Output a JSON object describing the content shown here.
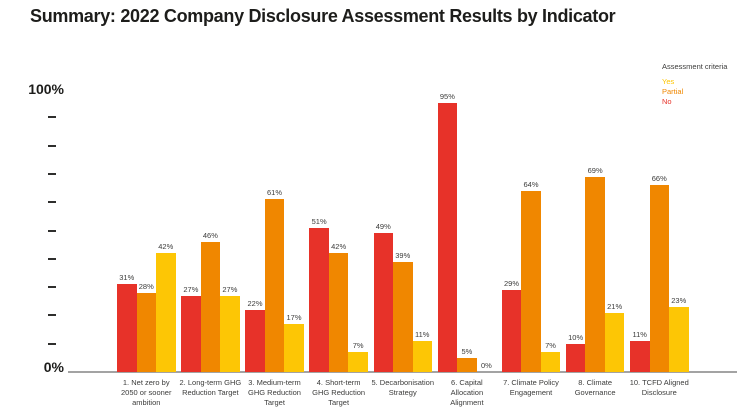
{
  "title": "Summary: 2022 Company Disclosure Assessment Results by Indicator",
  "legend": {
    "title": "Assessment criteria",
    "items": [
      {
        "label": "Yes",
        "color": "#fdc605"
      },
      {
        "label": "Partial",
        "color": "#f08700"
      },
      {
        "label": "No",
        "color": "#e73229"
      }
    ]
  },
  "y_axis": {
    "top_label": "100%",
    "bottom_label": "0%",
    "tick_count": 9
  },
  "chart_data": {
    "type": "bar",
    "title": "Summary: 2022 Company Disclosure Assessment Results by Indicator",
    "xlabel": "",
    "ylabel": "",
    "ylim": [
      0,
      100
    ],
    "y_tick_interval": 10,
    "grid": false,
    "legend_position": "top-right",
    "value_suffix": "%",
    "categories": [
      "1. Net zero by 2050 or sooner ambition",
      "2. Long-term GHG Reduction Target",
      "3. Medium-term GHG Reduction Target",
      "4. Short-term GHG Reduction Target",
      "5. Decarbonisation Strategy",
      "6. Capital Allocation Alignment",
      "7. Climate Policy Engagement",
      "8. Climate Governance",
      "10. TCFD Aligned Disclosure"
    ],
    "category_lines": [
      [
        "1. Net zero by",
        "2050 or sooner",
        "ambition"
      ],
      [
        "2. Long-term GHG",
        "Reduction Target"
      ],
      [
        "3. Medium-term",
        "GHG Reduction",
        "Target"
      ],
      [
        "4. Short-term",
        "GHG Reduction",
        "Target"
      ],
      [
        "5. Decarbonisation",
        "Strategy"
      ],
      [
        "6. Capital",
        "Allocation",
        "Alignment"
      ],
      [
        "7. Climate Policy",
        "Engagement"
      ],
      [
        "8. Climate",
        "Governance"
      ],
      [
        "10. TCFD Aligned",
        "Disclosure"
      ]
    ],
    "series": [
      {
        "name": "No",
        "color": "#e73229",
        "values": [
          31,
          27,
          22,
          51,
          49,
          95,
          29,
          10,
          11
        ]
      },
      {
        "name": "Partial",
        "color": "#f08700",
        "values": [
          28,
          46,
          61,
          42,
          39,
          5,
          64,
          69,
          66
        ]
      },
      {
        "name": "Yes",
        "color": "#fdc605",
        "values": [
          42,
          27,
          17,
          7,
          11,
          0,
          7,
          21,
          23
        ]
      }
    ]
  }
}
